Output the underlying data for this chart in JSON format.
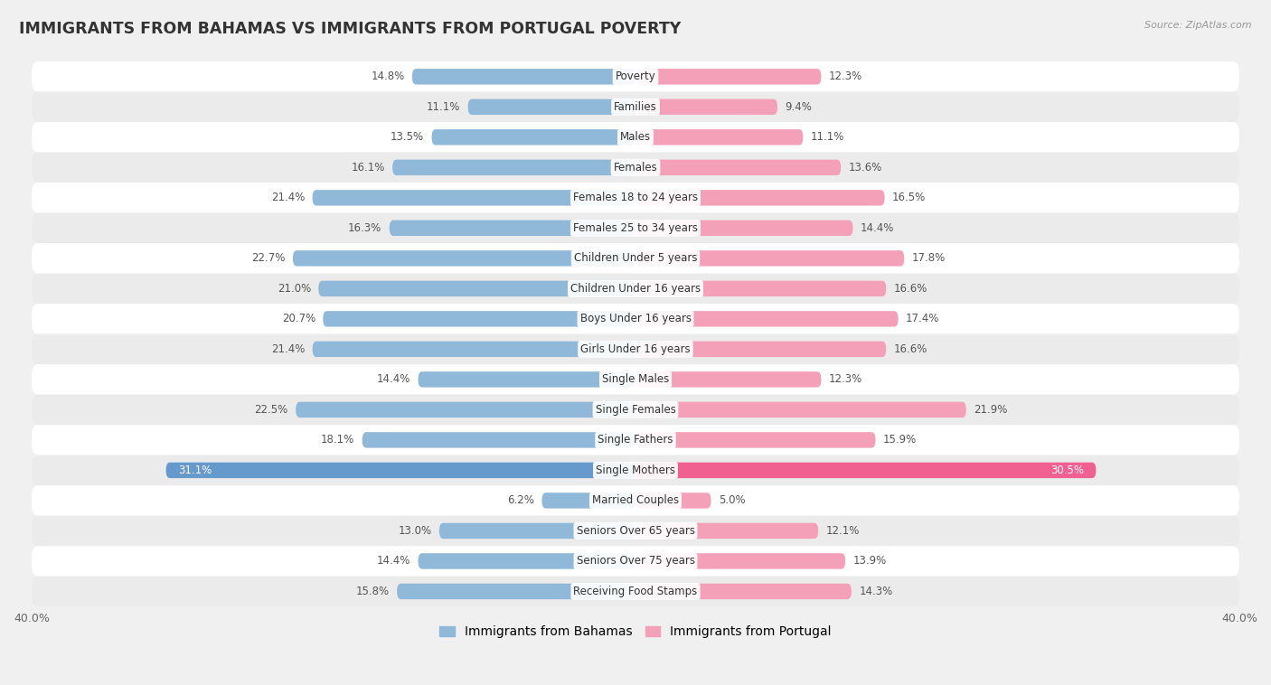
{
  "title": "IMMIGRANTS FROM BAHAMAS VS IMMIGRANTS FROM PORTUGAL POVERTY",
  "source": "Source: ZipAtlas.com",
  "categories": [
    "Poverty",
    "Families",
    "Males",
    "Females",
    "Females 18 to 24 years",
    "Females 25 to 34 years",
    "Children Under 5 years",
    "Children Under 16 years",
    "Boys Under 16 years",
    "Girls Under 16 years",
    "Single Males",
    "Single Females",
    "Single Fathers",
    "Single Mothers",
    "Married Couples",
    "Seniors Over 65 years",
    "Seniors Over 75 years",
    "Receiving Food Stamps"
  ],
  "bahamas_values": [
    14.8,
    11.1,
    13.5,
    16.1,
    21.4,
    16.3,
    22.7,
    21.0,
    20.7,
    21.4,
    14.4,
    22.5,
    18.1,
    31.1,
    6.2,
    13.0,
    14.4,
    15.8
  ],
  "portugal_values": [
    12.3,
    9.4,
    11.1,
    13.6,
    16.5,
    14.4,
    17.8,
    16.6,
    17.4,
    16.6,
    12.3,
    21.9,
    15.9,
    30.5,
    5.0,
    12.1,
    13.9,
    14.3
  ],
  "bahamas_color": "#90b8d8",
  "portugal_color": "#f4a0b8",
  "bahamas_highlight_color": "#6699cc",
  "portugal_highlight_color": "#f06090",
  "row_white": "#ffffff",
  "row_gray": "#ebebeb",
  "background_color": "#f0f0f0",
  "xlim": 40.0,
  "bar_height": 0.52,
  "legend_label_bahamas": "Immigrants from Bahamas",
  "legend_label_portugal": "Immigrants from Portugal"
}
